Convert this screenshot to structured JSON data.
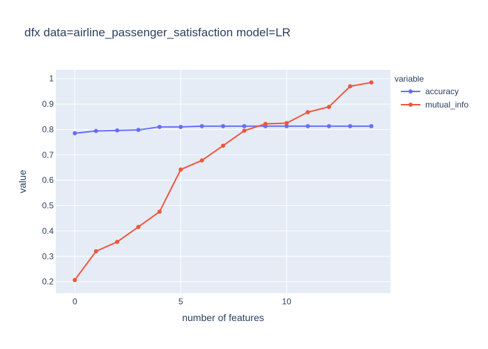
{
  "chart_data": {
    "type": "line",
    "title": "dfx data=airline_passenger_satisfaction model=LR",
    "xlabel": "number of features",
    "ylabel": "value",
    "legend_title": "variable",
    "legend_position": "right",
    "grid": true,
    "xlim": [
      -0.9,
      14.9
    ],
    "ylim": [
      0.155,
      1.035
    ],
    "x_ticks": [
      0,
      5,
      10
    ],
    "y_ticks": [
      0.2,
      0.3,
      0.4,
      0.5,
      0.6,
      0.7,
      0.8,
      0.9,
      1
    ],
    "x": [
      0,
      1,
      2,
      3,
      4,
      5,
      6,
      7,
      8,
      9,
      10,
      11,
      12,
      13,
      14
    ],
    "series": [
      {
        "name": "accuracy",
        "color": "#636efa",
        "values": [
          0.785,
          0.794,
          0.796,
          0.798,
          0.81,
          0.81,
          0.813,
          0.813,
          0.813,
          0.813,
          0.813,
          0.813,
          0.813,
          0.813,
          0.813
        ]
      },
      {
        "name": "mutual_info",
        "color": "#ef553b",
        "values": [
          0.207,
          0.32,
          0.357,
          0.416,
          0.476,
          0.642,
          0.678,
          0.736,
          0.795,
          0.822,
          0.825,
          0.868,
          0.889,
          0.97,
          0.985
        ]
      }
    ],
    "plot_background": "#e5ecf6",
    "grid_color": "#ffffff"
  }
}
